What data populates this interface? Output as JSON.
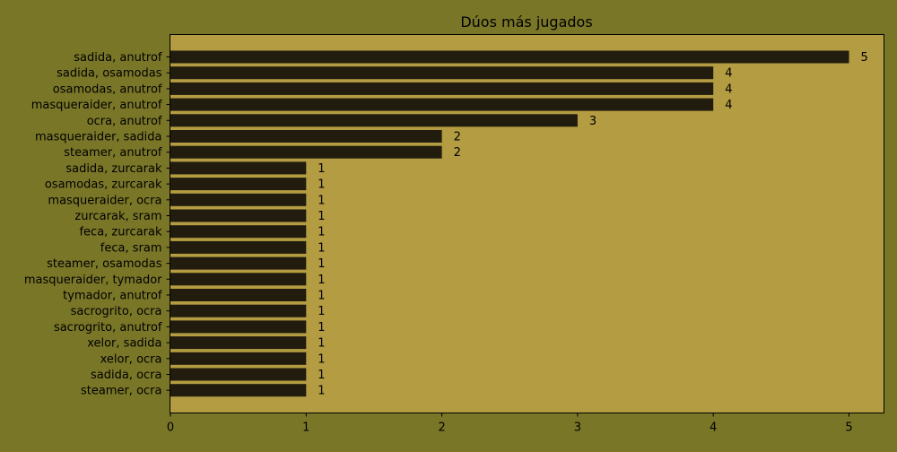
{
  "chart_data": {
    "type": "bar",
    "orientation": "horizontal",
    "title": "Dúos más jugados",
    "xlabel": "",
    "ylabel": "",
    "xlim": [
      0,
      5.25
    ],
    "xticks": [
      "0",
      "1",
      "2",
      "3",
      "4",
      "5"
    ],
    "grid": false,
    "categories": [
      "sadida, anutrof",
      "sadida, osamodas",
      "osamodas, anutrof",
      "masqueraider, anutrof",
      "ocra, anutrof",
      "masqueraider, sadida",
      "steamer, anutrof",
      "sadida, zurcarak",
      "osamodas, zurcarak",
      "masqueraider, ocra",
      "zurcarak, sram",
      "feca, zurcarak",
      "feca, sram",
      "steamer, osamodas",
      "masqueraider, tymador",
      "tymador, anutrof",
      "sacrogrito, ocra",
      "sacrogrito, anutrof",
      "xelor, sadida",
      "xelor, ocra",
      "sadida, ocra",
      "steamer, ocra"
    ],
    "values": [
      5,
      4,
      4,
      4,
      3,
      2,
      2,
      1,
      1,
      1,
      1,
      1,
      1,
      1,
      1,
      1,
      1,
      1,
      1,
      1,
      1,
      1
    ],
    "colors": {
      "figure_background": "#7a7628",
      "plot_background": "#b39c42",
      "bar": "#211c0e",
      "text": "#000000"
    }
  }
}
